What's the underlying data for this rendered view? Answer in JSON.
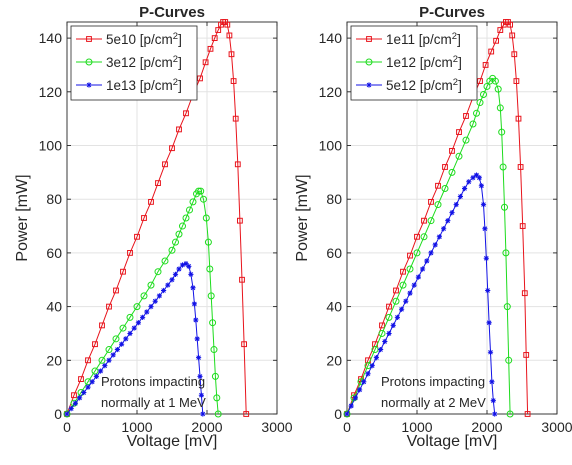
{
  "chart_data": [
    {
      "type": "line",
      "title": "P-Curves",
      "xlabel": "Voltage [mV]",
      "ylabel": "Power [mW]",
      "xlim": [
        0,
        3000
      ],
      "ylim": [
        0,
        146
      ],
      "xticks": [
        "0",
        "1000",
        "2000",
        "3000"
      ],
      "yticks": [
        "0",
        "20",
        "40",
        "60",
        "80",
        "100",
        "120",
        "140"
      ],
      "grid": true,
      "legend_position": "top-left",
      "annotation": [
        "Protons impacting",
        "normally at 1 MeV"
      ],
      "series": [
        {
          "name_base": "5e10 [p/cm",
          "name_sup": "2",
          "name_end": "]",
          "color": "#e8141c",
          "marker": "square",
          "points": [
            [
              0,
              0
            ],
            [
              100,
              7
            ],
            [
              200,
              13
            ],
            [
              300,
              20
            ],
            [
              400,
              26
            ],
            [
              500,
              33
            ],
            [
              600,
              40
            ],
            [
              700,
              46
            ],
            [
              800,
              53
            ],
            [
              900,
              60
            ],
            [
              1000,
              66
            ],
            [
              1100,
              73
            ],
            [
              1200,
              79
            ],
            [
              1300,
              86
            ],
            [
              1400,
              93
            ],
            [
              1500,
              99
            ],
            [
              1600,
              106
            ],
            [
              1700,
              112
            ],
            [
              1800,
              119
            ],
            [
              1900,
              125
            ],
            [
              1980,
              131
            ],
            [
              2050,
              136
            ],
            [
              2110,
              140
            ],
            [
              2160,
              143
            ],
            [
              2200,
              145
            ],
            [
              2230,
              146
            ],
            [
              2260,
              146
            ],
            [
              2290,
              145
            ],
            [
              2320,
              141
            ],
            [
              2350,
              134
            ],
            [
              2380,
              124
            ],
            [
              2410,
              110
            ],
            [
              2440,
              93
            ],
            [
              2470,
              72
            ],
            [
              2500,
              50
            ],
            [
              2530,
              26
            ],
            [
              2560,
              0
            ]
          ]
        },
        {
          "name_base": "3e12 [p/cm",
          "name_sup": "2",
          "name_end": "]",
          "color": "#1ddc1d",
          "marker": "circle",
          "points": [
            [
              0,
              0
            ],
            [
              100,
              4
            ],
            [
              200,
              8
            ],
            [
              300,
              12
            ],
            [
              400,
              16
            ],
            [
              500,
              20
            ],
            [
              600,
              24
            ],
            [
              700,
              28
            ],
            [
              800,
              32
            ],
            [
              900,
              36
            ],
            [
              1000,
              40
            ],
            [
              1100,
              44
            ],
            [
              1200,
              48
            ],
            [
              1300,
              53
            ],
            [
              1400,
              57
            ],
            [
              1500,
              61
            ],
            [
              1550,
              64
            ],
            [
              1600,
              67
            ],
            [
              1650,
              70
            ],
            [
              1700,
              73
            ],
            [
              1750,
              76
            ],
            [
              1800,
              79
            ],
            [
              1850,
              82
            ],
            [
              1880,
              83
            ],
            [
              1910,
              83
            ],
            [
              1950,
              80
            ],
            [
              1990,
              73
            ],
            [
              2020,
              64
            ],
            [
              2040,
              54
            ],
            [
              2060,
              44
            ],
            [
              2080,
              34
            ],
            [
              2100,
              24
            ],
            [
              2120,
              14
            ],
            [
              2140,
              6
            ],
            [
              2160,
              0
            ]
          ]
        },
        {
          "name_base": "1e13 [p/cm",
          "name_sup": "2",
          "name_end": "]",
          "color": "#1212e6",
          "marker": "asterisk",
          "points": [
            [
              0,
              0
            ],
            [
              60,
              2
            ],
            [
              120,
              4
            ],
            [
              180,
              6
            ],
            [
              240,
              8
            ],
            [
              300,
              10
            ],
            [
              360,
              12
            ],
            [
              420,
              14
            ],
            [
              480,
              16
            ],
            [
              540,
              18
            ],
            [
              600,
              20
            ],
            [
              660,
              22
            ],
            [
              720,
              24
            ],
            [
              780,
              26
            ],
            [
              840,
              28
            ],
            [
              900,
              30
            ],
            [
              960,
              32
            ],
            [
              1020,
              34
            ],
            [
              1080,
              36
            ],
            [
              1140,
              38
            ],
            [
              1200,
              40
            ],
            [
              1260,
              42
            ],
            [
              1320,
              44
            ],
            [
              1380,
              46
            ],
            [
              1440,
              48
            ],
            [
              1500,
              50
            ],
            [
              1550,
              52
            ],
            [
              1600,
              54
            ],
            [
              1650,
              55.5
            ],
            [
              1700,
              56
            ],
            [
              1740,
              55
            ],
            [
              1770,
              52
            ],
            [
              1800,
              47
            ],
            [
              1820,
              41
            ],
            [
              1840,
              35
            ],
            [
              1860,
              28
            ],
            [
              1880,
              21
            ],
            [
              1900,
              14
            ],
            [
              1920,
              7
            ],
            [
              1940,
              0
            ]
          ]
        }
      ]
    },
    {
      "type": "line",
      "title": "P-Curves",
      "xlabel": "Voltage [mV]",
      "ylabel": "Power [mW]",
      "xlim": [
        0,
        3000
      ],
      "ylim": [
        0,
        146
      ],
      "xticks": [
        "0",
        "1000",
        "2000",
        "3000"
      ],
      "yticks": [
        "0",
        "20",
        "40",
        "60",
        "80",
        "100",
        "120",
        "140"
      ],
      "grid": true,
      "legend_position": "top-left",
      "annotation": [
        "Protons impacting",
        "normally at 2 MeV"
      ],
      "series": [
        {
          "name_base": "1e11 [p/cm",
          "name_sup": "2",
          "name_end": "]",
          "color": "#e8141c",
          "marker": "square",
          "points": [
            [
              0,
              0
            ],
            [
              100,
              7
            ],
            [
              200,
              13
            ],
            [
              300,
              20
            ],
            [
              400,
              26
            ],
            [
              500,
              33
            ],
            [
              600,
              40
            ],
            [
              700,
              46
            ],
            [
              800,
              53
            ],
            [
              900,
              59
            ],
            [
              1000,
              66
            ],
            [
              1100,
              72
            ],
            [
              1200,
              79
            ],
            [
              1300,
              85
            ],
            [
              1400,
              92
            ],
            [
              1500,
              98
            ],
            [
              1600,
              105
            ],
            [
              1700,
              111
            ],
            [
              1800,
              118
            ],
            [
              1900,
              124
            ],
            [
              1980,
              130
            ],
            [
              2060,
              135
            ],
            [
              2130,
              139
            ],
            [
              2190,
              143
            ],
            [
              2240,
              145
            ],
            [
              2270,
              146
            ],
            [
              2300,
              146
            ],
            [
              2330,
              145
            ],
            [
              2360,
              141
            ],
            [
              2390,
              134
            ],
            [
              2420,
              124
            ],
            [
              2450,
              110
            ],
            [
              2480,
              92
            ],
            [
              2510,
              70
            ],
            [
              2540,
              45
            ],
            [
              2560,
              22
            ],
            [
              2580,
              0
            ]
          ]
        },
        {
          "name_base": "1e12 [p/cm",
          "name_sup": "2",
          "name_end": "]",
          "color": "#1ddc1d",
          "marker": "circle",
          "points": [
            [
              0,
              0
            ],
            [
              100,
              6
            ],
            [
              200,
              12
            ],
            [
              300,
              18
            ],
            [
              400,
              24
            ],
            [
              500,
              30
            ],
            [
              600,
              36
            ],
            [
              700,
              42
            ],
            [
              800,
              48
            ],
            [
              900,
              54
            ],
            [
              1000,
              60
            ],
            [
              1100,
              66
            ],
            [
              1200,
              72
            ],
            [
              1300,
              78
            ],
            [
              1400,
              84
            ],
            [
              1500,
              90
            ],
            [
              1600,
              96
            ],
            [
              1700,
              102
            ],
            [
              1800,
              108
            ],
            [
              1850,
              112
            ],
            [
              1900,
              116
            ],
            [
              1950,
              119
            ],
            [
              2000,
              122
            ],
            [
              2040,
              124
            ],
            [
              2080,
              125
            ],
            [
              2120,
              124
            ],
            [
              2160,
              121
            ],
            [
              2190,
              114
            ],
            [
              2210,
              105
            ],
            [
              2230,
              92
            ],
            [
              2250,
              77
            ],
            [
              2270,
              60
            ],
            [
              2290,
              40
            ],
            [
              2310,
              20
            ],
            [
              2330,
              0
            ]
          ]
        },
        {
          "name_base": "5e12 [p/cm",
          "name_sup": "2",
          "name_end": "]",
          "color": "#1212e6",
          "marker": "asterisk",
          "points": [
            [
              0,
              0
            ],
            [
              60,
              3
            ],
            [
              120,
              6
            ],
            [
              180,
              9
            ],
            [
              240,
              12
            ],
            [
              300,
              15
            ],
            [
              360,
              18
            ],
            [
              420,
              21
            ],
            [
              480,
              24
            ],
            [
              540,
              27
            ],
            [
              600,
              30
            ],
            [
              660,
              33
            ],
            [
              720,
              36
            ],
            [
              780,
              39
            ],
            [
              840,
              42
            ],
            [
              900,
              45
            ],
            [
              960,
              48
            ],
            [
              1020,
              51
            ],
            [
              1080,
              54
            ],
            [
              1140,
              57
            ],
            [
              1200,
              60
            ],
            [
              1260,
              63
            ],
            [
              1320,
              66
            ],
            [
              1380,
              69
            ],
            [
              1440,
              72
            ],
            [
              1500,
              75
            ],
            [
              1560,
              78
            ],
            [
              1620,
              81
            ],
            [
              1680,
              84
            ],
            [
              1740,
              86.5
            ],
            [
              1800,
              88
            ],
            [
              1850,
              89
            ],
            [
              1890,
              88
            ],
            [
              1920,
              85
            ],
            [
              1950,
              78
            ],
            [
              1970,
              69
            ],
            [
              1990,
              58
            ],
            [
              2010,
              46
            ],
            [
              2030,
              34
            ],
            [
              2050,
              23
            ],
            [
              2070,
              12
            ],
            [
              2090,
              5
            ],
            [
              2110,
              0
            ]
          ]
        }
      ]
    }
  ]
}
